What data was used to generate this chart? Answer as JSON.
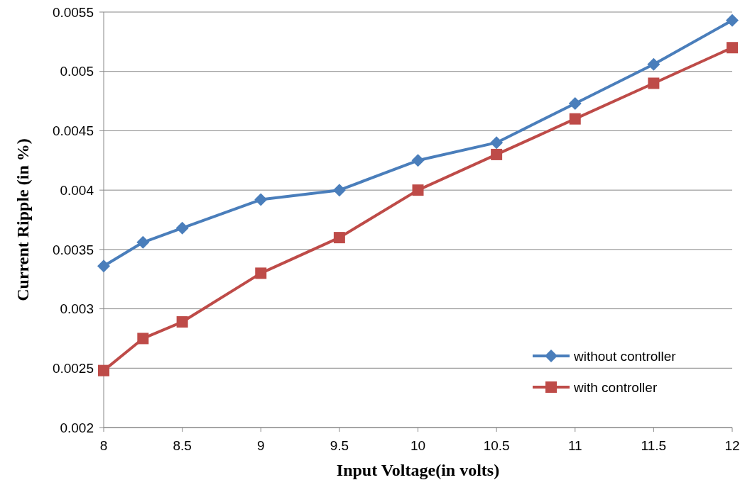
{
  "chart_data": {
    "type": "line",
    "xlabel": "Input Voltage(in volts)",
    "ylabel": "Current Ripple (in %)",
    "xlim": [
      8,
      12
    ],
    "xticks": [
      8,
      8.5,
      9,
      9.5,
      10,
      10.5,
      11,
      11.5,
      12
    ],
    "ylim": [
      0.002,
      0.0055
    ],
    "yticks": [
      0.002,
      0.0025,
      0.003,
      0.0035,
      0.004,
      0.0045,
      0.005,
      0.0055
    ],
    "grid": "y",
    "legend": "bottom right",
    "series": [
      {
        "name": "without controller",
        "color": "#4a7ebb",
        "marker": "diamond",
        "x": [
          8,
          8.25,
          8.5,
          9,
          9.5,
          10,
          10.5,
          11,
          11.5,
          12
        ],
        "values": [
          0.00336,
          0.00356,
          0.00368,
          0.00392,
          0.004,
          0.00425,
          0.0044,
          0.00473,
          0.00506,
          0.00543
        ]
      },
      {
        "name": "with controller",
        "color": "#be4b48",
        "marker": "square",
        "x": [
          8,
          8.25,
          8.5,
          9,
          9.5,
          10,
          10.5,
          11,
          11.5,
          12
        ],
        "values": [
          0.00248,
          0.00275,
          0.00289,
          0.0033,
          0.0036,
          0.004,
          0.0043,
          0.0046,
          0.0049,
          0.0052
        ]
      }
    ]
  }
}
